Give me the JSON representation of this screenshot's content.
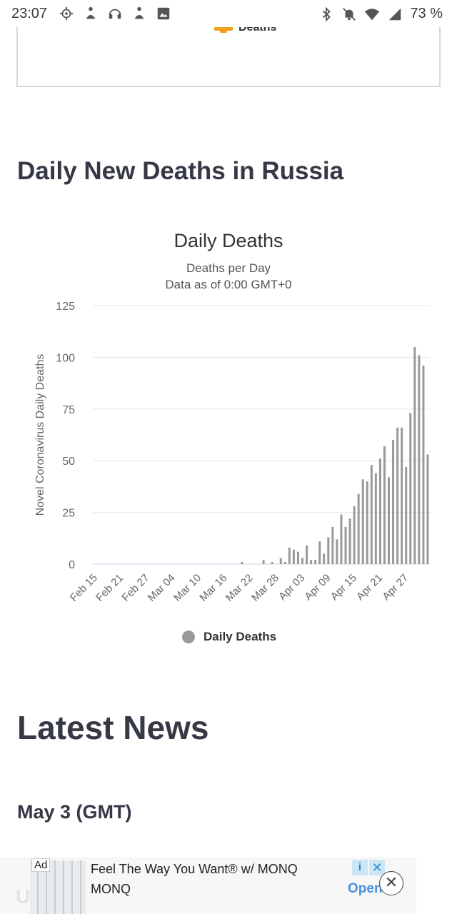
{
  "status_bar": {
    "time": "23:07",
    "battery": "73 %",
    "left_icons": [
      "gear-icon",
      "figure-icon",
      "headset-icon",
      "figure-icon",
      "image-icon"
    ],
    "right_icons": [
      "bluetooth-icon",
      "bell-muted-icon",
      "wifi-icon",
      "signal-icon"
    ]
  },
  "previous_chart": {
    "legend_label": "Deaths",
    "legend_color": "#f0a020"
  },
  "section": {
    "title": "Daily New Deaths in Russia"
  },
  "chart_data": {
    "type": "bar",
    "title": "Daily Deaths",
    "subtitle_1": "Deaths per Day",
    "subtitle_2": "Data as of 0:00 GMT+0",
    "ylabel": "Novel Coronavirus Daily Deaths",
    "xlabel": "",
    "ylim": [
      0,
      125
    ],
    "y_ticks": [
      0,
      25,
      50,
      75,
      100,
      125
    ],
    "x_tick_labels": [
      "Feb 15",
      "Feb 21",
      "Feb 27",
      "Mar 04",
      "Mar 10",
      "Mar 16",
      "Mar 22",
      "Mar 28",
      "Apr 03",
      "Apr 09",
      "Apr 15",
      "Apr 21",
      "Apr 27"
    ],
    "categories": [
      "Feb 15",
      "Feb 16",
      "Feb 17",
      "Feb 18",
      "Feb 19",
      "Feb 20",
      "Feb 21",
      "Feb 22",
      "Feb 23",
      "Feb 24",
      "Feb 25",
      "Feb 26",
      "Feb 27",
      "Feb 28",
      "Feb 29",
      "Mar 01",
      "Mar 02",
      "Mar 03",
      "Mar 04",
      "Mar 05",
      "Mar 06",
      "Mar 07",
      "Mar 08",
      "Mar 09",
      "Mar 10",
      "Mar 11",
      "Mar 12",
      "Mar 13",
      "Mar 14",
      "Mar 15",
      "Mar 16",
      "Mar 17",
      "Mar 18",
      "Mar 19",
      "Mar 20",
      "Mar 21",
      "Mar 22",
      "Mar 23",
      "Mar 24",
      "Mar 25",
      "Mar 26",
      "Mar 27",
      "Mar 28",
      "Mar 29",
      "Mar 30",
      "Mar 31",
      "Apr 01",
      "Apr 02",
      "Apr 03",
      "Apr 04",
      "Apr 05",
      "Apr 06",
      "Apr 07",
      "Apr 08",
      "Apr 09",
      "Apr 10",
      "Apr 11",
      "Apr 12",
      "Apr 13",
      "Apr 14",
      "Apr 15",
      "Apr 16",
      "Apr 17",
      "Apr 18",
      "Apr 19",
      "Apr 20",
      "Apr 21",
      "Apr 22",
      "Apr 23",
      "Apr 24",
      "Apr 25",
      "Apr 26",
      "Apr 27",
      "Apr 28",
      "Apr 29",
      "Apr 30",
      "May 01",
      "May 02"
    ],
    "series": [
      {
        "name": "Daily Deaths",
        "color": "#999999",
        "values": [
          0,
          0,
          0,
          0,
          0,
          0,
          0,
          0,
          0,
          0,
          0,
          0,
          0,
          0,
          0,
          0,
          0,
          0,
          0,
          0,
          0,
          0,
          0,
          0,
          0,
          0,
          0,
          0,
          0,
          0,
          0,
          0,
          0,
          0,
          1,
          0,
          0,
          0,
          0,
          2,
          0,
          1,
          0,
          3,
          1,
          8,
          7,
          6,
          3,
          9,
          2,
          2,
          11,
          5,
          13,
          18,
          12,
          24,
          18,
          22,
          28,
          34,
          41,
          40,
          48,
          44,
          51,
          57,
          42,
          60,
          66,
          66,
          47,
          73,
          105,
          101,
          96,
          53
        ]
      }
    ],
    "grid": true,
    "legend_placement": "bottom"
  },
  "news": {
    "title": "Latest News",
    "date": "May 3 (GMT)"
  },
  "ad": {
    "tag": "Ad",
    "title": "Feel The Way You Want® w/ MONQ",
    "brand": "MONQ",
    "cta": "Open",
    "info_icon": "info-icon",
    "x_icon": "close-icon",
    "close_icon": "close-circle-icon"
  }
}
